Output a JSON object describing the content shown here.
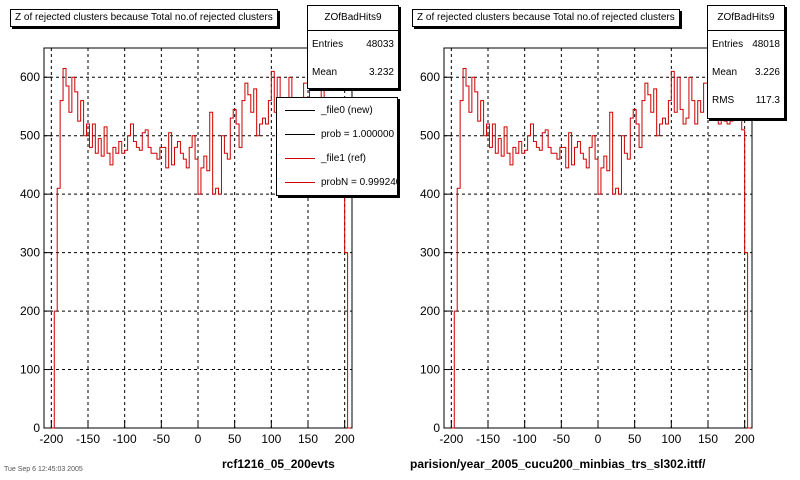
{
  "colors": {
    "hist_ref": "#cc0000",
    "hist_new": "#000000",
    "grid": "#000000"
  },
  "footer_text": "Tue Sep  6 12:45:03 2005",
  "chart_data": [
    {
      "type": "line",
      "title": "Z of rejected clusters  because Total no.of rejected clusters",
      "xlabel": "rcf1216_05_200evts",
      "xlim": [
        -210,
        210
      ],
      "ylim": [
        0,
        650
      ],
      "xticks": [
        -200,
        -150,
        -100,
        -50,
        0,
        50,
        100,
        150,
        200
      ],
      "yticks": [
        0,
        100,
        200,
        300,
        400,
        500,
        600
      ],
      "grid": true,
      "stats": {
        "name": "ZOfBadHits9",
        "entries_label": "Entries",
        "entries": "48033",
        "mean_label": "Mean",
        "mean": "3.232"
      },
      "legend": [
        {
          "label": "_file0 (new)",
          "color": "#000000"
        },
        {
          "label": "prob = 1.000000",
          "color": "#000000"
        },
        {
          "label": "_file1 (ref)",
          "color": "#cc0000"
        },
        {
          "label": "probN = 0.999240",
          "color": "#cc0000"
        }
      ],
      "series": [
        {
          "x": [
            -200,
            -196,
            -192,
            -188,
            -184,
            -180,
            -176,
            -172,
            -168,
            -164,
            -160,
            -156,
            -152,
            -148,
            -144,
            -140,
            -136,
            -132,
            -128,
            -124,
            -120,
            -116,
            -112,
            -108,
            -104,
            -100,
            -96,
            -92,
            -88,
            -84,
            -80,
            -76,
            -72,
            -68,
            -64,
            -60,
            -56,
            -52,
            -48,
            -44,
            -40,
            -36,
            -32,
            -28,
            -24,
            -20,
            -16,
            -12,
            -8,
            -4,
            0,
            4,
            8,
            12,
            16,
            20,
            24,
            28,
            32,
            36,
            40,
            44,
            48,
            52,
            56,
            60,
            64,
            68,
            72,
            76,
            80,
            84,
            88,
            92,
            96,
            100,
            104,
            108,
            112,
            116,
            120,
            124,
            128,
            132,
            136,
            140,
            144,
            148,
            152,
            156,
            160,
            164,
            168,
            172,
            176,
            180,
            184,
            188,
            192,
            196,
            200,
            204
          ],
          "values": [
            0,
            200,
            410,
            560,
            615,
            585,
            540,
            600,
            575,
            525,
            560,
            500,
            520,
            480,
            520,
            470,
            495,
            465,
            515,
            470,
            450,
            480,
            470,
            490,
            470,
            475,
            500,
            520,
            490,
            480,
            475,
            505,
            510,
            480,
            470,
            470,
            460,
            480,
            480,
            445,
            505,
            450,
            480,
            490,
            470,
            460,
            445,
            480,
            500,
            460,
            400,
            445,
            465,
            440,
            540,
            400,
            410,
            400,
            500,
            470,
            460,
            530,
            545,
            520,
            480,
            560,
            590,
            570,
            540,
            580,
            500,
            520,
            530,
            520,
            560,
            610,
            540,
            600,
            545,
            520,
            530,
            600,
            560,
            520,
            560,
            540,
            590,
            590,
            540,
            555,
            560,
            520,
            590,
            525,
            520,
            525,
            550,
            560,
            540,
            510,
            300,
            0
          ]
        }
      ]
    },
    {
      "type": "line",
      "title": "Z of rejected clusters  because Total no.of rejected clusters",
      "xlabel": "parision/year_2005_cucu200_minbias_trs_sl302.ittf/",
      "xlim": [
        -210,
        210
      ],
      "ylim": [
        0,
        650
      ],
      "xticks": [
        -200,
        -150,
        -100,
        -50,
        0,
        50,
        100,
        150,
        200
      ],
      "yticks": [
        0,
        100,
        200,
        300,
        400,
        500,
        600
      ],
      "grid": true,
      "stats": {
        "name": "ZOfBadHits9",
        "entries_label": "Entries",
        "entries": "48018",
        "mean_label": "Mean",
        "mean": "3.226",
        "rms_label": "RMS",
        "rms": "117.3"
      },
      "series": [
        {
          "x": [
            -200,
            -196,
            -192,
            -188,
            -184,
            -180,
            -176,
            -172,
            -168,
            -164,
            -160,
            -156,
            -152,
            -148,
            -144,
            -140,
            -136,
            -132,
            -128,
            -124,
            -120,
            -116,
            -112,
            -108,
            -104,
            -100,
            -96,
            -92,
            -88,
            -84,
            -80,
            -76,
            -72,
            -68,
            -64,
            -60,
            -56,
            -52,
            -48,
            -44,
            -40,
            -36,
            -32,
            -28,
            -24,
            -20,
            -16,
            -12,
            -8,
            -4,
            0,
            4,
            8,
            12,
            16,
            20,
            24,
            28,
            32,
            36,
            40,
            44,
            48,
            52,
            56,
            60,
            64,
            68,
            72,
            76,
            80,
            84,
            88,
            92,
            96,
            100,
            104,
            108,
            112,
            116,
            120,
            124,
            128,
            132,
            136,
            140,
            144,
            148,
            152,
            156,
            160,
            164,
            168,
            172,
            176,
            180,
            184,
            188,
            192,
            196,
            200,
            204
          ],
          "values": [
            0,
            200,
            410,
            560,
            615,
            585,
            540,
            600,
            575,
            525,
            560,
            500,
            520,
            480,
            520,
            470,
            495,
            465,
            515,
            470,
            450,
            480,
            470,
            490,
            470,
            475,
            500,
            520,
            490,
            480,
            475,
            505,
            510,
            480,
            470,
            470,
            460,
            480,
            480,
            445,
            505,
            450,
            480,
            490,
            470,
            460,
            445,
            480,
            500,
            460,
            400,
            445,
            465,
            440,
            540,
            400,
            410,
            400,
            500,
            470,
            460,
            530,
            545,
            520,
            480,
            560,
            590,
            570,
            540,
            580,
            500,
            520,
            530,
            520,
            560,
            610,
            540,
            600,
            545,
            520,
            530,
            600,
            560,
            520,
            560,
            540,
            590,
            590,
            540,
            555,
            560,
            520,
            590,
            525,
            520,
            525,
            550,
            560,
            540,
            510,
            300,
            0
          ]
        }
      ]
    }
  ]
}
